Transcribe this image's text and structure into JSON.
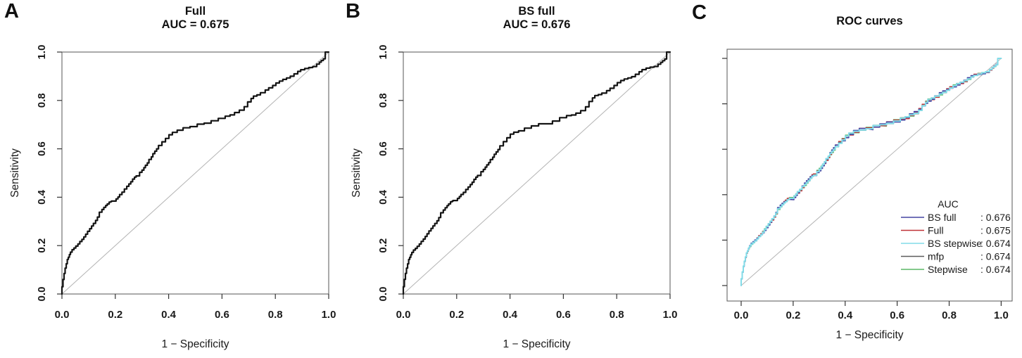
{
  "figure": {
    "background": "#ffffff",
    "text_color": "#1a1a1a",
    "box_color": "#555555",
    "diagonal_color": "#b4b4b4"
  },
  "chart_data": {
    "type": "line",
    "subtype": "roc",
    "xlabel": "1 − Specificity",
    "ylabel": "Sensitivity",
    "xlim": [
      0,
      1
    ],
    "ylim": [
      0,
      1
    ],
    "grid": false,
    "base_roc_points": [
      [
        0,
        0
      ],
      [
        0.004,
        0.03
      ],
      [
        0.008,
        0.06
      ],
      [
        0.012,
        0.085
      ],
      [
        0.016,
        0.107
      ],
      [
        0.02,
        0.125
      ],
      [
        0.024,
        0.143
      ],
      [
        0.028,
        0.152
      ],
      [
        0.032,
        0.163
      ],
      [
        0.038,
        0.173
      ],
      [
        0.045,
        0.183
      ],
      [
        0.052,
        0.19
      ],
      [
        0.06,
        0.198
      ],
      [
        0.067,
        0.207
      ],
      [
        0.075,
        0.217
      ],
      [
        0.082,
        0.226
      ],
      [
        0.089,
        0.236
      ],
      [
        0.096,
        0.247
      ],
      [
        0.104,
        0.259
      ],
      [
        0.111,
        0.27
      ],
      [
        0.118,
        0.281
      ],
      [
        0.126,
        0.292
      ],
      [
        0.133,
        0.304
      ],
      [
        0.14,
        0.318
      ],
      [
        0.15,
        0.338
      ],
      [
        0.157,
        0.349
      ],
      [
        0.164,
        0.358
      ],
      [
        0.17,
        0.366
      ],
      [
        0.177,
        0.372
      ],
      [
        0.183,
        0.38
      ],
      [
        0.186,
        0.382
      ],
      [
        0.203,
        0.384
      ],
      [
        0.21,
        0.393
      ],
      [
        0.216,
        0.401
      ],
      [
        0.225,
        0.411
      ],
      [
        0.234,
        0.421
      ],
      [
        0.243,
        0.434
      ],
      [
        0.251,
        0.445
      ],
      [
        0.258,
        0.455
      ],
      [
        0.265,
        0.464
      ],
      [
        0.272,
        0.475
      ],
      [
        0.278,
        0.483
      ],
      [
        0.291,
        0.488
      ],
      [
        0.3,
        0.503
      ],
      [
        0.307,
        0.512
      ],
      [
        0.313,
        0.522
      ],
      [
        0.32,
        0.532
      ],
      [
        0.326,
        0.542
      ],
      [
        0.335,
        0.556
      ],
      [
        0.341,
        0.567
      ],
      [
        0.348,
        0.58
      ],
      [
        0.355,
        0.59
      ],
      [
        0.362,
        0.6
      ],
      [
        0.375,
        0.614
      ],
      [
        0.388,
        0.629
      ],
      [
        0.401,
        0.643
      ],
      [
        0.414,
        0.658
      ],
      [
        0.432,
        0.668
      ],
      [
        0.454,
        0.677
      ],
      [
        0.48,
        0.687
      ],
      [
        0.507,
        0.692
      ],
      [
        0.533,
        0.702
      ],
      [
        0.559,
        0.706
      ],
      [
        0.586,
        0.716
      ],
      [
        0.612,
        0.726
      ],
      [
        0.63,
        0.735
      ],
      [
        0.647,
        0.74
      ],
      [
        0.665,
        0.75
      ],
      [
        0.683,
        0.76
      ],
      [
        0.696,
        0.774
      ],
      [
        0.709,
        0.794
      ],
      [
        0.718,
        0.808
      ],
      [
        0.731,
        0.818
      ],
      [
        0.744,
        0.823
      ],
      [
        0.762,
        0.832
      ],
      [
        0.775,
        0.843
      ],
      [
        0.79,
        0.852
      ],
      [
        0.802,
        0.862
      ],
      [
        0.815,
        0.872
      ],
      [
        0.828,
        0.88
      ],
      [
        0.842,
        0.887
      ],
      [
        0.856,
        0.893
      ],
      [
        0.87,
        0.9
      ],
      [
        0.884,
        0.91
      ],
      [
        0.895,
        0.92
      ],
      [
        0.91,
        0.927
      ],
      [
        0.925,
        0.932
      ],
      [
        0.94,
        0.936
      ],
      [
        0.955,
        0.94
      ],
      [
        0.965,
        0.95
      ],
      [
        0.972,
        0.958
      ],
      [
        0.98,
        0.965
      ],
      [
        0.987,
        0.972
      ],
      [
        1,
        1
      ]
    ],
    "panels": [
      {
        "id": "A",
        "label": "A",
        "title": "Full",
        "subtitle": "AUC = 0.675",
        "xlabel": "1 − Specificity",
        "ylabel": "Sensitivity",
        "xticks": [
          "0.0",
          "0.2",
          "0.4",
          "0.6",
          "0.8",
          "1.0"
        ],
        "yticks": [
          "0.0",
          "0.2",
          "0.4",
          "0.6",
          "0.8",
          "1.0"
        ],
        "diagonal": true,
        "series": [
          {
            "name": "Full",
            "auc": "0.675",
            "color": "#141414",
            "width": 2.2,
            "jitter": 0,
            "phase": 0
          }
        ]
      },
      {
        "id": "B",
        "label": "B",
        "title": "BS full",
        "subtitle": "AUC = 0.676",
        "xlabel": "1 − Specificity",
        "ylabel": "Sensitivity",
        "xticks": [
          "0.0",
          "0.2",
          "0.4",
          "0.6",
          "0.8",
          "1.0"
        ],
        "yticks": [
          "0.0",
          "0.2",
          "0.4",
          "0.6",
          "0.8",
          "1.0"
        ],
        "diagonal": true,
        "series": [
          {
            "name": "BS full",
            "auc": "0.676",
            "color": "#141414",
            "width": 2.2,
            "jitter": 0.003,
            "phase": 2.1
          }
        ]
      },
      {
        "id": "C",
        "label": "C",
        "title": "ROC curves",
        "subtitle": "",
        "xlabel": "1 − Specificity",
        "ylabel": "",
        "xticks": [
          "0.0",
          "0.2",
          "0.4",
          "0.6",
          "0.8",
          "1.0"
        ],
        "yticks": [],
        "ytick_marks": 6,
        "diagonal": true,
        "legend": {
          "title": "AUC",
          "entries": [
            {
              "name": "BS full",
              "value": "0.676",
              "color": "#4545a2"
            },
            {
              "name": "Full",
              "value": "0.675",
              "color": "#bf3237"
            },
            {
              "name": "BS stepwise",
              "value": "0.674",
              "color": "#82dce8"
            },
            {
              "name": "mfp",
              "value": "0.674",
              "color": "#5c5c5c"
            },
            {
              "name": "Stepwise",
              "value": "0.674",
              "color": "#5cb867"
            }
          ]
        },
        "series": [
          {
            "name": "mfp",
            "auc": "0.674",
            "color": "#5c5c5c",
            "width": 1.3,
            "jitter": 0.004,
            "phase": 1.1
          },
          {
            "name": "Stepwise",
            "auc": "0.674",
            "color": "#5cb867",
            "width": 1.3,
            "jitter": 0.005,
            "phase": 2.3
          },
          {
            "name": "Full",
            "auc": "0.675",
            "color": "#bf3237",
            "width": 1.3,
            "jitter": 0.006,
            "phase": 3.7
          },
          {
            "name": "BS full",
            "auc": "0.676",
            "color": "#4545a2",
            "width": 1.6,
            "jitter": 0.0075,
            "phase": 5.1
          },
          {
            "name": "BS stepwise",
            "auc": "0.674",
            "color": "#82dce8",
            "width": 2.0,
            "jitter": 0.003,
            "phase": 0.4
          }
        ]
      }
    ]
  }
}
